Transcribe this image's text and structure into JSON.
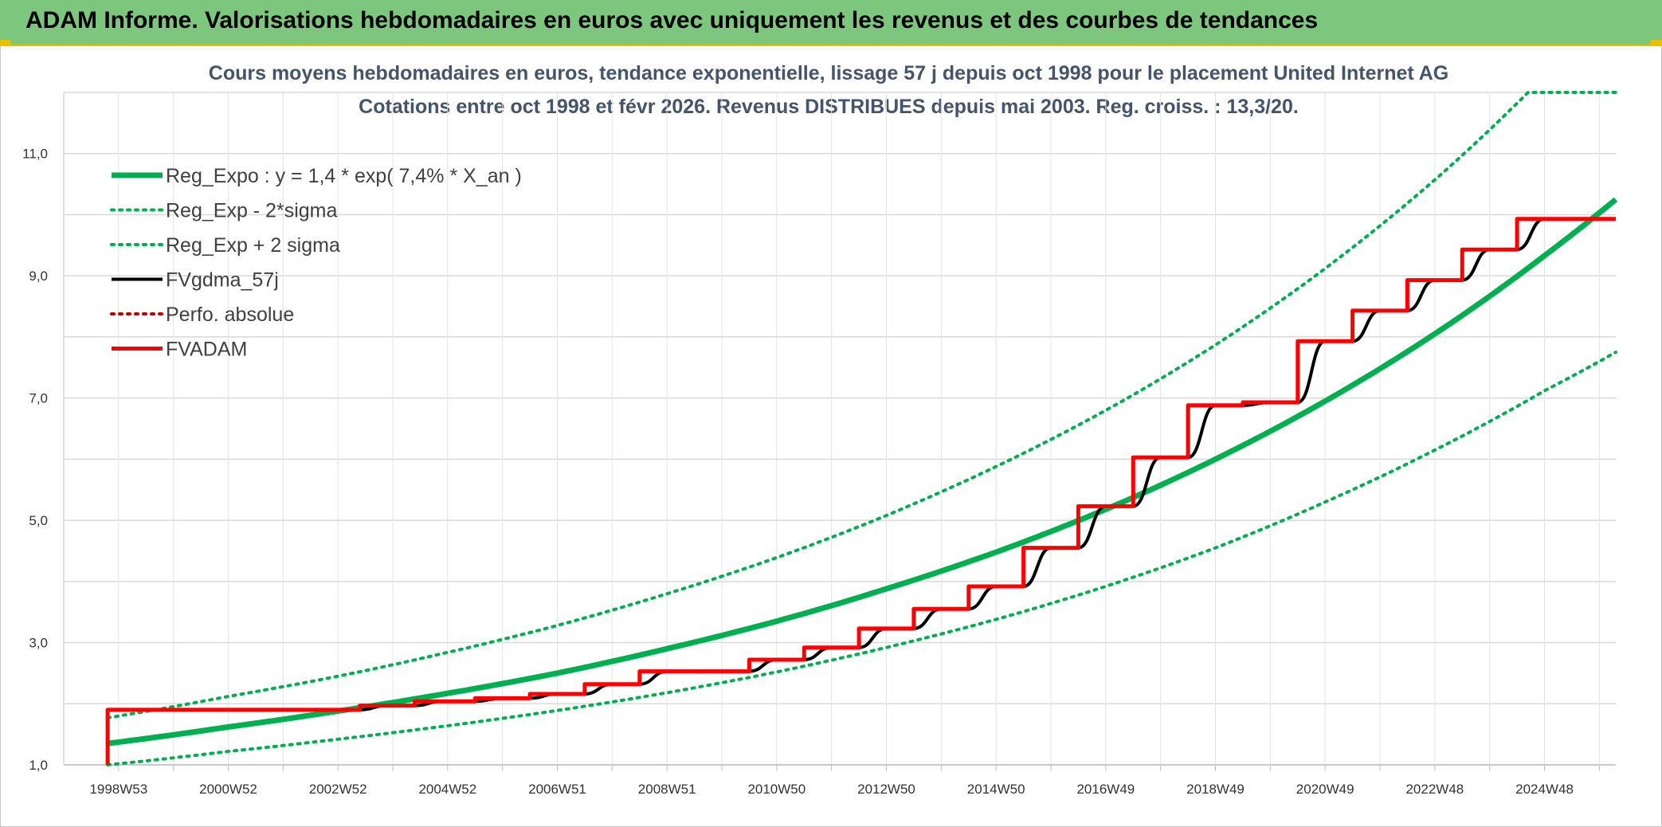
{
  "banner": {
    "title": "ADAM Informe. Valorisations hebdomadaires en euros avec uniquement les revenus et des courbes de tendances",
    "background": "#7dc67e",
    "accent": "#e8c000"
  },
  "chart_data": {
    "type": "line",
    "title": "Cours moyens hebdomadaires en euros, tendance exponentielle, lissage 57 j depuis oct 1998 pour le placement United Internet AG",
    "subtitle": "Cotations entre oct 1998 et févr 2026. Revenus DISTRIBUES depuis mai 2003. Reg. croiss. : 13,3/20.",
    "x_tick_labels": [
      "1998W53",
      "2000W52",
      "2002W52",
      "2004W52",
      "2006W51",
      "2008W51",
      "2010W50",
      "2012W50",
      "2014W50",
      "2016W49",
      "2018W49",
      "2020W49",
      "2022W48",
      "2024W48"
    ],
    "x_tick_years": [
      1999.0,
      2001.0,
      2003.0,
      2005.0,
      2007.0,
      2009.0,
      2011.0,
      2013.0,
      2015.0,
      2017.0,
      2019.0,
      2021.0,
      2023.0,
      2025.0
    ],
    "xlim": [
      1998.0,
      2026.3
    ],
    "ylim": [
      1.0,
      12.0
    ],
    "y_ticks": [
      "1,0",
      "3,0",
      "5,0",
      "7,0",
      "9,0",
      "11,0"
    ],
    "y_tick_values": [
      1,
      3,
      5,
      7,
      9,
      11
    ],
    "grid": true,
    "legend_position": "top-left",
    "series": [
      {
        "name": "Reg_Expo : y = 1,4 * exp( 7,4% *  X_an )",
        "color": "#00b050",
        "style": "solid",
        "x": [
          1998.8,
          2001,
          2003,
          2005,
          2007,
          2009,
          2011,
          2013,
          2015,
          2017,
          2019,
          2021,
          2023,
          2025,
          2026.3
        ],
        "values": [
          1.35,
          1.62,
          1.88,
          2.17,
          2.5,
          2.9,
          3.35,
          3.88,
          4.48,
          5.18,
          6.0,
          6.95,
          8.05,
          9.33,
          10.25
        ]
      },
      {
        "name": "Reg_Exp - 2*sigma",
        "color": "#00b050",
        "style": "dotted",
        "x": [
          1998.8,
          2001,
          2003,
          2005,
          2007,
          2009,
          2011,
          2013,
          2015,
          2017,
          2019,
          2021,
          2023,
          2025,
          2026.3
        ],
        "values": [
          1.0,
          1.22,
          1.42,
          1.64,
          1.89,
          2.18,
          2.52,
          2.92,
          3.38,
          3.92,
          4.55,
          5.3,
          6.15,
          7.12,
          7.75
        ]
      },
      {
        "name": "Reg_Exp + 2 sigma",
        "color": "#00b050",
        "style": "dotted",
        "x": [
          1998.8,
          2001,
          2003,
          2005,
          2007,
          2009,
          2011,
          2013,
          2015,
          2017,
          2019,
          2021,
          2023,
          2024.7,
          2026.3
        ],
        "values": [
          1.77,
          2.12,
          2.45,
          2.84,
          3.28,
          3.8,
          4.39,
          5.08,
          5.88,
          6.8,
          7.87,
          9.12,
          10.57,
          12.0,
          12.0
        ]
      },
      {
        "name": "FVgdma_57j",
        "color": "#000000",
        "style": "smooth-steps",
        "x": [
          1998.8,
          1998.8,
          2003.4,
          2004.4,
          2005.5,
          2006.5,
          2007.5,
          2008.5,
          2010.5,
          2011.5,
          2012.5,
          2013.5,
          2014.5,
          2015.5,
          2016.5,
          2017.5,
          2018.5,
          2019.5,
          2020.5,
          2021.5,
          2022.5,
          2023.5,
          2024.5,
          2026.3
        ],
        "values": [
          1.0,
          1.9,
          1.97,
          2.04,
          2.09,
          2.16,
          2.32,
          2.53,
          2.72,
          2.92,
          3.23,
          3.55,
          3.92,
          4.55,
          5.23,
          6.03,
          6.88,
          6.93,
          7.93,
          8.43,
          8.93,
          9.43,
          9.93,
          9.93
        ]
      },
      {
        "name": "Perfo. absolue",
        "color": "#c00000",
        "style": "dotted",
        "x": [],
        "values": []
      },
      {
        "name": "FVADAM",
        "color": "#ff0000",
        "style": "steps",
        "x": [
          1998.8,
          1998.8,
          2003.4,
          2004.4,
          2005.5,
          2006.5,
          2007.5,
          2008.5,
          2010.5,
          2011.5,
          2012.5,
          2013.5,
          2014.5,
          2015.5,
          2016.5,
          2017.5,
          2018.5,
          2019.5,
          2020.5,
          2021.5,
          2022.5,
          2023.5,
          2024.5,
          2026.3
        ],
        "values": [
          1.0,
          1.9,
          1.97,
          2.04,
          2.09,
          2.16,
          2.32,
          2.53,
          2.72,
          2.92,
          3.23,
          3.55,
          3.92,
          4.55,
          5.23,
          6.03,
          6.88,
          6.93,
          7.93,
          8.43,
          8.93,
          9.43,
          9.93,
          9.93
        ]
      }
    ]
  }
}
